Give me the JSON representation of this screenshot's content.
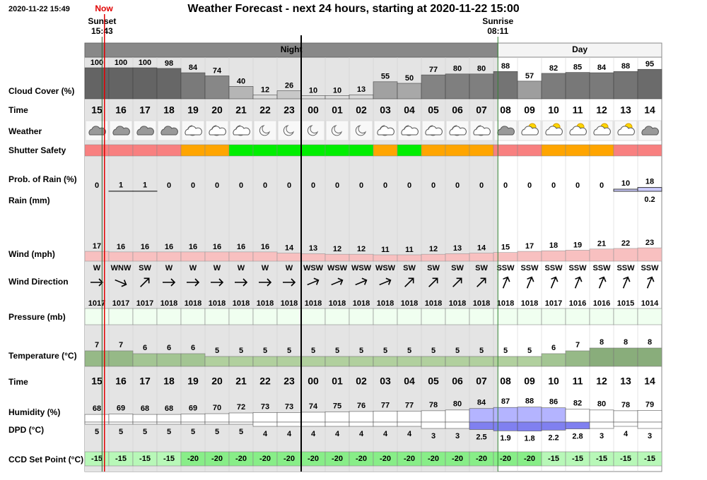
{
  "header": {
    "timestamp": "2020-11-22 15:49",
    "now": "Now",
    "title": "Weather Forecast - next 24 hours, starting at 2020-11-22 15:00",
    "sunset_label": "Sunset",
    "sunset_time": "15:43",
    "sunrise_label": "Sunrise",
    "sunrise_time": "08:11"
  },
  "periods": {
    "night": "Night",
    "day": "Day"
  },
  "hours": [
    "15",
    "16",
    "17",
    "18",
    "19",
    "20",
    "21",
    "22",
    "23",
    "00",
    "01",
    "02",
    "03",
    "04",
    "05",
    "06",
    "07",
    "08",
    "09",
    "10",
    "11",
    "12",
    "13",
    "14"
  ],
  "rows": {
    "cloud_cover": {
      "label": "Cloud Cover (%)",
      "values": [
        100,
        100,
        100,
        98,
        84,
        74,
        40,
        12,
        26,
        10,
        10,
        13,
        55,
        50,
        77,
        80,
        80,
        88,
        57,
        82,
        85,
        84,
        88,
        95
      ]
    },
    "time": {
      "label": "Time"
    },
    "weather": {
      "label": "Weather"
    },
    "shutter_safety": {
      "label": "Shutter Safety",
      "colors": [
        "#f88080",
        "#f88080",
        "#f88080",
        "#f88080",
        "#ffa500",
        "#ffa500",
        "#00ee00",
        "#00ee00",
        "#00ee00",
        "#00ee00",
        "#00ee00",
        "#00ee00",
        "#ffa500",
        "#00ee00",
        "#ffa500",
        "#ffa500",
        "#ffa500",
        "#f88080",
        "#f88080",
        "#ffa500",
        "#ffa500",
        "#ffa500",
        "#f88080",
        "#f88080"
      ]
    },
    "prob_rain": {
      "label": "Prob. of Rain (%)",
      "values": [
        0,
        1,
        1,
        0,
        0,
        0,
        0,
        0,
        0,
        0,
        0,
        0,
        0,
        0,
        0,
        0,
        0,
        0,
        0,
        0,
        0,
        0,
        10,
        18
      ]
    },
    "rain": {
      "label": "Rain (mm)",
      "values": [
        null,
        null,
        null,
        null,
        null,
        null,
        null,
        null,
        null,
        null,
        null,
        null,
        null,
        null,
        null,
        null,
        null,
        null,
        null,
        null,
        null,
        null,
        null,
        0.2
      ]
    },
    "wind": {
      "label": "Wind (mph)",
      "values": [
        17,
        16,
        16,
        16,
        16,
        16,
        16,
        16,
        14,
        13,
        12,
        12,
        11,
        11,
        12,
        13,
        14,
        15,
        17,
        18,
        19,
        21,
        22,
        23
      ]
    },
    "wind_direction": {
      "label": "Wind Direction",
      "values": [
        "W",
        "WNW",
        "SW",
        "W",
        "W",
        "W",
        "W",
        "W",
        "W",
        "WSW",
        "WSW",
        "WSW",
        "WSW",
        "SW",
        "SW",
        "SW",
        "SW",
        "SSW",
        "SSW",
        "SSW",
        "SSW",
        "SSW",
        "SSW",
        "SSW"
      ]
    },
    "pressure": {
      "label": "Pressure (mb)",
      "values": [
        1017,
        1017,
        1017,
        1018,
        1018,
        1018,
        1018,
        1018,
        1018,
        1018,
        1018,
        1018,
        1018,
        1018,
        1018,
        1018,
        1018,
        1018,
        1018,
        1017,
        1016,
        1016,
        1015,
        1014
      ]
    },
    "temperature": {
      "label": "Temperature (°C)",
      "values": [
        7,
        7,
        6,
        6,
        6,
        5,
        5,
        5,
        5,
        5,
        5,
        5,
        5,
        5,
        5,
        5,
        5,
        5,
        5,
        6,
        7,
        8,
        8,
        8
      ]
    },
    "humidity": {
      "label": "Humidity (%)",
      "values": [
        68,
        69,
        68,
        68,
        69,
        70,
        72,
        73,
        73,
        74,
        75,
        76,
        77,
        77,
        78,
        80,
        84,
        87,
        88,
        86,
        82,
        80,
        78,
        79
      ]
    },
    "dpd": {
      "label": "DPD (°C)",
      "values": [
        5,
        5,
        5,
        5,
        5,
        5,
        5,
        4,
        4,
        4,
        4,
        4,
        4,
        4,
        3,
        3,
        2.5,
        1.9,
        1.8,
        2.2,
        2.8,
        3,
        4,
        3
      ]
    },
    "ccd_set_point": {
      "label": "CCD Set Point (°C)",
      "values": [
        -15,
        -15,
        -15,
        -15,
        -20,
        -20,
        -20,
        -20,
        -20,
        -20,
        -20,
        -20,
        -20,
        -20,
        -20,
        -20,
        -20,
        -20,
        -20,
        -15,
        -15,
        -15,
        -15,
        -15
      ]
    }
  }
}
